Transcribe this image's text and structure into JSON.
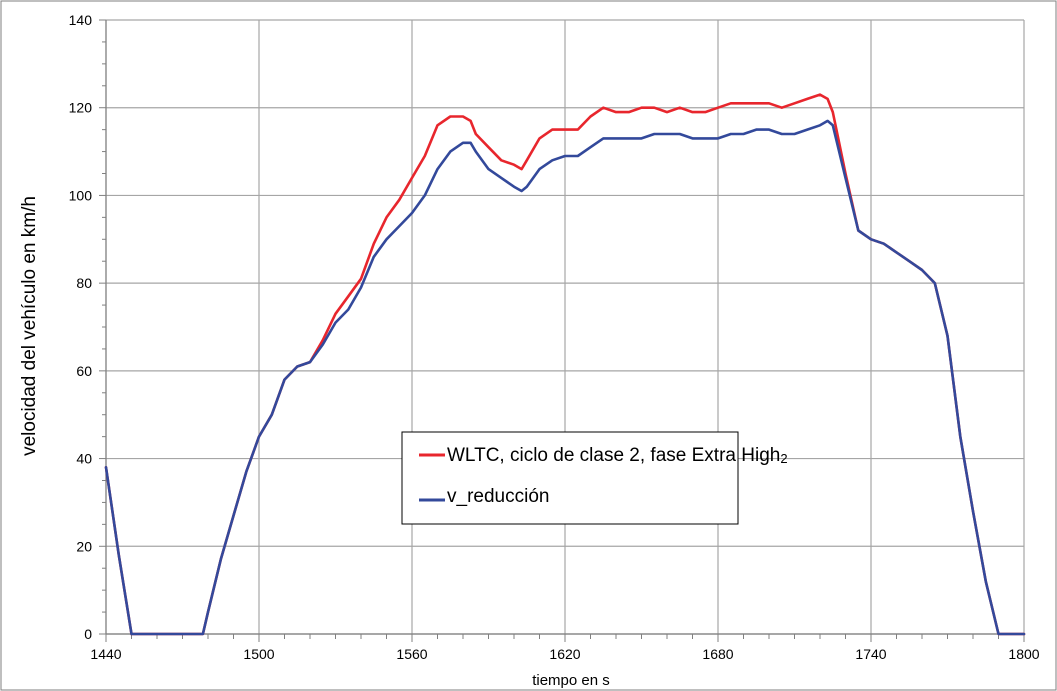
{
  "chart_data": {
    "type": "line",
    "title": "",
    "xlabel": "tiempo en s",
    "ylabel": "velocidad del vehículo en km/h",
    "xlim": [
      1440,
      1800
    ],
    "ylim": [
      0,
      140
    ],
    "xticks": [
      1440,
      1500,
      1560,
      1620,
      1680,
      1740,
      1800
    ],
    "yticks": [
      0,
      20,
      40,
      60,
      80,
      100,
      120,
      140
    ],
    "x_minor_step": 10,
    "y_minor_step": 5,
    "grid": true,
    "legend_position": "center",
    "legend": {
      "label1_main": "WLTC, ciclo de clase 2, fase Extra High",
      "label1_sub": "2",
      "label2": "v_reducción"
    },
    "series": [
      {
        "color": "#e8262d",
        "x": [
          1440,
          1445,
          1450,
          1455,
          1460,
          1465,
          1470,
          1475,
          1478,
          1480,
          1485,
          1490,
          1495,
          1500,
          1505,
          1510,
          1515,
          1520,
          1525,
          1530,
          1535,
          1540,
          1545,
          1550,
          1555,
          1560,
          1565,
          1570,
          1575,
          1580,
          1583,
          1585,
          1590,
          1595,
          1600,
          1603,
          1605,
          1610,
          1615,
          1620,
          1625,
          1630,
          1635,
          1640,
          1645,
          1650,
          1655,
          1660,
          1665,
          1670,
          1675,
          1680,
          1685,
          1690,
          1695,
          1700,
          1705,
          1710,
          1715,
          1720,
          1723,
          1725,
          1730,
          1735,
          1740,
          1745,
          1750,
          1755,
          1760,
          1765,
          1770,
          1775,
          1780,
          1785,
          1790,
          1795,
          1800
        ],
        "y": [
          38,
          18,
          0,
          0,
          0,
          0,
          0,
          0,
          0,
          5,
          17,
          27,
          37,
          45,
          50,
          58,
          61,
          62,
          67,
          73,
          77,
          81,
          89,
          95,
          99,
          104,
          109,
          116,
          118,
          118,
          117,
          114,
          111,
          108,
          107,
          106,
          108,
          113,
          115,
          115,
          115,
          118,
          120,
          119,
          119,
          120,
          120,
          119,
          120,
          119,
          119,
          120,
          121,
          121,
          121,
          121,
          120,
          121,
          122,
          123,
          122,
          119,
          105,
          92,
          90,
          89,
          87,
          85,
          83,
          80,
          68,
          45,
          28,
          12,
          0,
          0,
          0
        ]
      },
      {
        "color": "#33499b",
        "x": [
          1440,
          1445,
          1450,
          1455,
          1460,
          1465,
          1470,
          1475,
          1478,
          1480,
          1485,
          1490,
          1495,
          1500,
          1505,
          1510,
          1515,
          1520,
          1525,
          1530,
          1535,
          1540,
          1545,
          1550,
          1555,
          1560,
          1565,
          1570,
          1575,
          1580,
          1583,
          1585,
          1590,
          1595,
          1600,
          1603,
          1605,
          1610,
          1615,
          1620,
          1625,
          1630,
          1635,
          1640,
          1645,
          1650,
          1655,
          1660,
          1665,
          1670,
          1675,
          1680,
          1685,
          1690,
          1695,
          1700,
          1705,
          1710,
          1715,
          1720,
          1723,
          1725,
          1730,
          1735,
          1740,
          1745,
          1750,
          1755,
          1760,
          1765,
          1770,
          1775,
          1780,
          1785,
          1790,
          1795,
          1800
        ],
        "y": [
          38,
          18,
          0,
          0,
          0,
          0,
          0,
          0,
          0,
          5,
          17,
          27,
          37,
          45,
          50,
          58,
          61,
          62,
          66,
          71,
          74,
          79,
          86,
          90,
          93,
          96,
          100,
          106,
          110,
          112,
          112,
          110,
          106,
          104,
          102,
          101,
          102,
          106,
          108,
          109,
          109,
          111,
          113,
          113,
          113,
          113,
          114,
          114,
          114,
          113,
          113,
          113,
          114,
          114,
          115,
          115,
          114,
          114,
          115,
          116,
          117,
          116,
          104,
          92,
          90,
          89,
          87,
          85,
          83,
          80,
          68,
          45,
          28,
          12,
          0,
          0,
          0
        ]
      }
    ]
  }
}
